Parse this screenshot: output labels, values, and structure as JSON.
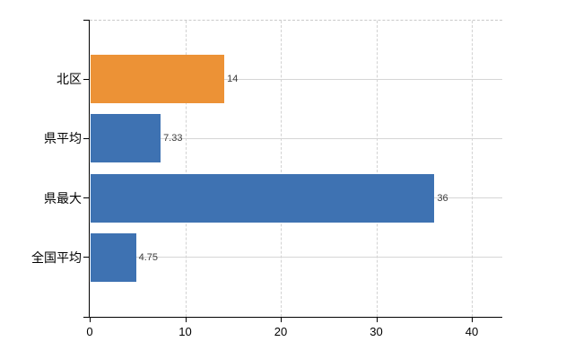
{
  "chart_data": {
    "type": "bar",
    "orientation": "horizontal",
    "title": "",
    "xlabel": "",
    "ylabel": "",
    "categories": [
      "北区",
      "県平均",
      "県最大",
      "全国平均"
    ],
    "values": [
      14,
      7.33,
      36,
      4.75
    ],
    "value_labels": [
      "14",
      "7.33",
      "36",
      "4.75"
    ],
    "bar_colors": [
      "#EC9236",
      "#3E72B2",
      "#3E72B2",
      "#3E72B2"
    ],
    "x_tick_values": [
      0,
      10,
      20,
      30,
      40
    ],
    "x_tick_labels": [
      "0",
      "10",
      "20",
      "30",
      "40"
    ],
    "xlim": [
      0,
      43.2
    ],
    "grid": true,
    "legend": false,
    "colors": {
      "axis": "#000000",
      "gridline": "#d6d6d6",
      "plot_top_border": "#c9c9c9",
      "value_label_text": "#3d3d3d",
      "category_label_text": "#000000",
      "background": "#ffffff"
    }
  }
}
